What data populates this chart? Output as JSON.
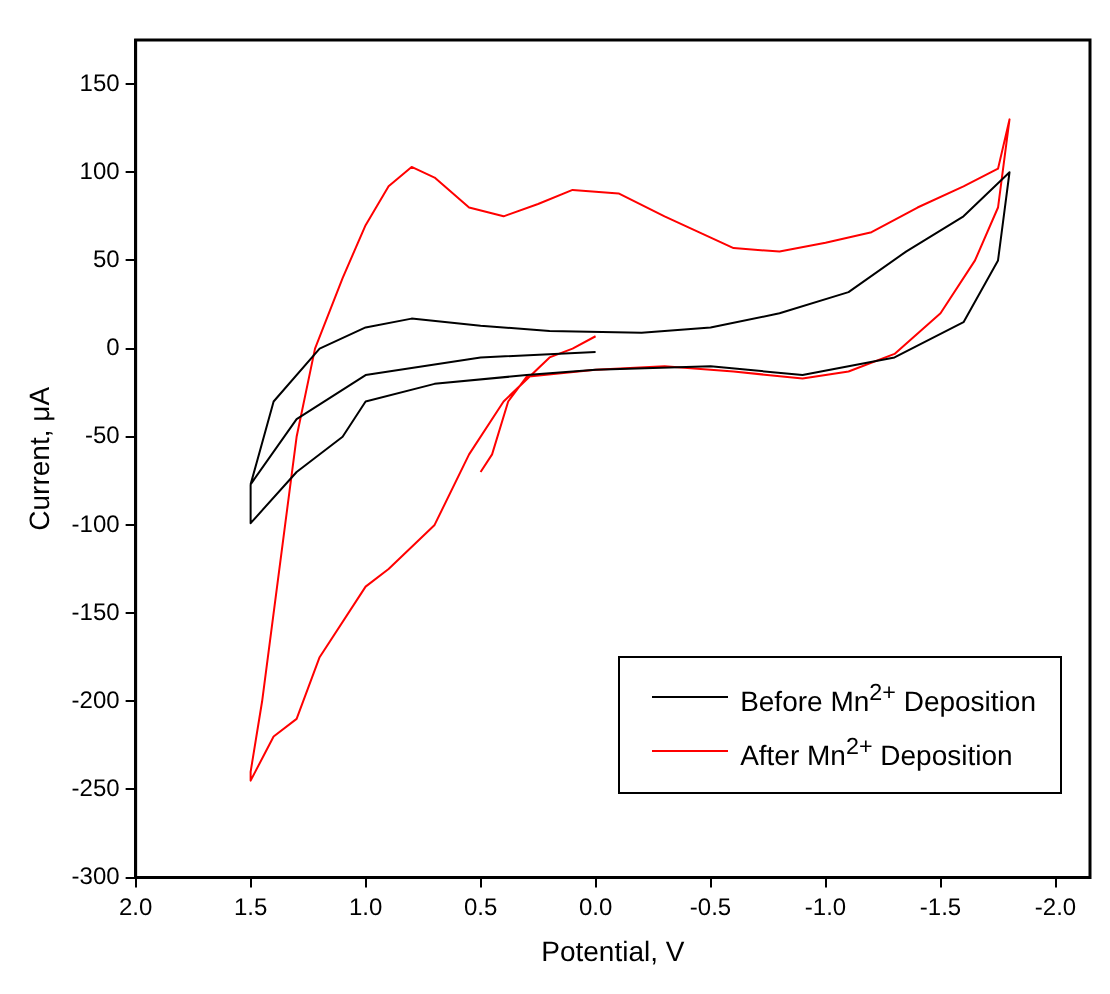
{
  "chart_data": {
    "type": "line",
    "xlabel": "Potential, V",
    "ylabel": "Current, μA",
    "xlim": [
      2.0,
      -2.15
    ],
    "xticks": [
      {
        "value": 2.0,
        "label": "2.0"
      },
      {
        "value": 1.5,
        "label": "1.5"
      },
      {
        "value": 1.0,
        "label": "1.0"
      },
      {
        "value": 0.5,
        "label": "0.5"
      },
      {
        "value": 0.0,
        "label": "0.0"
      },
      {
        "value": -0.5,
        "label": "-0.5"
      },
      {
        "value": -1.0,
        "label": "-1.0"
      },
      {
        "value": -1.5,
        "label": "-1.5"
      },
      {
        "value": -2.0,
        "label": "-2.0"
      }
    ],
    "ylim": [
      -300,
      175
    ],
    "yticks": [
      -300,
      -250,
      -200,
      -150,
      -100,
      -50,
      0,
      50,
      100,
      150
    ],
    "grid": false,
    "legend": "bottom right",
    "marker": "none",
    "line_style": "solid",
    "series": [
      {
        "name": "Before Mn$^{2+}$ Deposition",
        "color": "#000000",
        "x": [
          0.0,
          0.5,
          1.0,
          1.3,
          1.5,
          1.5,
          1.3,
          1.1,
          1.0,
          0.7,
          0.3,
          0.0,
          -0.5,
          -0.9,
          -1.3,
          -1.6,
          -1.75,
          -1.8,
          -1.6,
          -1.35,
          -1.1,
          -0.8,
          -0.5,
          -0.2,
          0.2,
          0.5,
          0.8,
          1.0,
          1.2,
          1.4,
          1.5
        ],
        "values": [
          -2,
          -5,
          -15,
          -40,
          -77,
          -99,
          -70,
          -50,
          -30,
          -20,
          -15,
          -12,
          -10,
          -15,
          -5,
          15,
          50,
          100,
          75,
          55,
          32,
          20,
          12,
          9,
          10,
          13,
          17,
          12,
          0,
          -30,
          -77
        ]
      },
      {
        "name": "After Mn$^{2+}$ Deposition",
        "color": "#ff0000",
        "x": [
          0.0,
          0.1,
          0.2,
          0.4,
          0.55,
          0.7,
          0.9,
          1.0,
          1.2,
          1.3,
          1.4,
          1.5,
          1.5,
          1.45,
          1.4,
          1.35,
          1.3,
          1.22,
          1.1,
          1.0,
          0.9,
          0.8,
          0.7,
          0.55,
          0.4,
          0.25,
          0.1,
          -0.1,
          -0.3,
          -0.6,
          -0.8,
          -1.0,
          -1.2,
          -1.4,
          -1.6,
          -1.75,
          -1.8,
          -1.75,
          -1.65,
          -1.5,
          -1.3,
          -1.1,
          -0.9,
          -0.6,
          -0.3,
          0.0,
          0.3,
          0.38,
          0.45,
          0.5
        ],
        "values": [
          7,
          0,
          -5,
          -30,
          -60,
          -100,
          -125,
          -135,
          -175,
          -210,
          -220,
          -245,
          -240,
          -200,
          -150,
          -100,
          -50,
          0,
          40,
          70,
          92,
          103,
          97,
          80,
          75,
          82,
          90,
          88,
          75,
          57,
          55,
          60,
          66,
          80,
          92,
          102,
          130,
          80,
          50,
          20,
          -3,
          -13,
          -17,
          -13,
          -10,
          -12,
          -16,
          -30,
          -60,
          -70
        ]
      }
    ]
  }
}
